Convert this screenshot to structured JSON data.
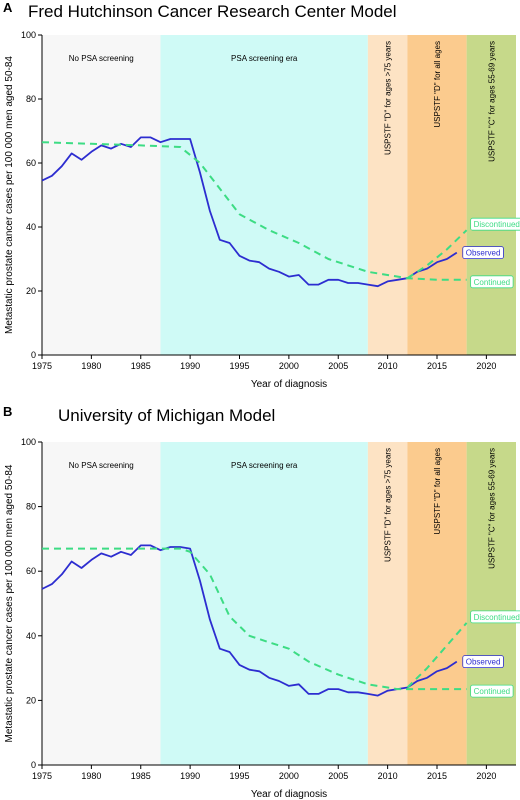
{
  "chart_data": [
    {
      "panel": "A",
      "type": "line",
      "title": "Fred Hutchinson Cancer Research Center Model",
      "xlabel": "Year of diagnosis",
      "ylabel": "Metastatic prostate cancer cases per 100 000 men aged 50-84",
      "xlim": [
        1975,
        2023
      ],
      "ylim": [
        0,
        100
      ],
      "xticks": [
        1975,
        1980,
        1985,
        1990,
        1995,
        2000,
        2005,
        2010,
        2015,
        2020
      ],
      "yticks": [
        0,
        20,
        40,
        60,
        80,
        100
      ],
      "eras": [
        {
          "label": "No PSA screening",
          "from": 1975,
          "to": 1987,
          "color": "#f7f7f7",
          "orientation": "horizontal"
        },
        {
          "label": "PSA screening era",
          "from": 1987,
          "to": 2008,
          "color": "#cffaf6",
          "orientation": "horizontal"
        },
        {
          "label": "USPSTF \"D\" for ages >75 years",
          "from": 2008,
          "to": 2012,
          "color": "#fde3c4",
          "orientation": "vertical"
        },
        {
          "label": "USPSTF \"D\" for all ages",
          "from": 2012,
          "to": 2018,
          "color": "#fbcb8e",
          "orientation": "vertical"
        },
        {
          "label": "USPSTF \"C\" for ages 55-69 years",
          "from": 2018,
          "to": 2023,
          "color": "#c6d98a",
          "orientation": "vertical"
        }
      ],
      "series": [
        {
          "name": "Observed",
          "color": "#2d2dd0",
          "style": "solid",
          "x": [
            1975,
            1976,
            1977,
            1978,
            1979,
            1980,
            1981,
            1982,
            1983,
            1984,
            1985,
            1986,
            1987,
            1988,
            1989,
            1990,
            1991,
            1992,
            1993,
            1994,
            1995,
            1996,
            1997,
            1998,
            1999,
            2000,
            2001,
            2002,
            2003,
            2004,
            2005,
            2006,
            2007,
            2008,
            2009,
            2010,
            2011,
            2012,
            2013,
            2014,
            2015,
            2016,
            2017
          ],
          "y": [
            54.5,
            56,
            59,
            63,
            61,
            63.5,
            65.5,
            64.5,
            66,
            65,
            68,
            68,
            66.5,
            67.5,
            67.5,
            67.5,
            57,
            45,
            36,
            35,
            31,
            29.5,
            29,
            27,
            26,
            24.5,
            25,
            22,
            22,
            23.5,
            23.5,
            22.5,
            22.5,
            22,
            21.5,
            23,
            23.5,
            24,
            26,
            27,
            29,
            30,
            32
          ]
        },
        {
          "name": "Continued",
          "color": "#3ddc84",
          "style": "dashed",
          "x": [
            1975,
            1980,
            1985,
            1989,
            1991,
            1993,
            1995,
            1998,
            2001,
            2004,
            2008,
            2012,
            2015,
            2018
          ],
          "y": [
            66.5,
            66,
            65.5,
            65,
            60,
            52,
            44,
            39,
            35,
            30,
            26,
            24,
            23.5,
            23.5
          ]
        },
        {
          "name": "Discontinued",
          "color": "#3ddc84",
          "style": "dashed",
          "x": [
            2012,
            2014,
            2016,
            2018
          ],
          "y": [
            24,
            28,
            33,
            39
          ]
        }
      ]
    },
    {
      "panel": "B",
      "type": "line",
      "title": "University of Michigan Model",
      "xlabel": "Year of diagnosis",
      "ylabel": "Metastatic prostate cancer cases per 100 000 men aged 50-84",
      "xlim": [
        1975,
        2023
      ],
      "ylim": [
        0,
        100
      ],
      "xticks": [
        1975,
        1980,
        1985,
        1990,
        1995,
        2000,
        2005,
        2010,
        2015,
        2020
      ],
      "yticks": [
        0,
        20,
        40,
        60,
        80,
        100
      ],
      "eras": [
        {
          "label": "No PSA screening",
          "from": 1975,
          "to": 1987,
          "color": "#f7f7f7",
          "orientation": "horizontal"
        },
        {
          "label": "PSA screening era",
          "from": 1987,
          "to": 2008,
          "color": "#cffaf6",
          "orientation": "horizontal"
        },
        {
          "label": "USPSTF \"D\" for ages >75 years",
          "from": 2008,
          "to": 2012,
          "color": "#fde3c4",
          "orientation": "vertical"
        },
        {
          "label": "USPSTF \"D\" for all ages",
          "from": 2012,
          "to": 2018,
          "color": "#fbcb8e",
          "orientation": "vertical"
        },
        {
          "label": "USPSTF \"C\" for ages 55-69 years",
          "from": 2018,
          "to": 2023,
          "color": "#c6d98a",
          "orientation": "vertical"
        }
      ],
      "series": [
        {
          "name": "Observed",
          "color": "#2d2dd0",
          "style": "solid",
          "x": [
            1975,
            1976,
            1977,
            1978,
            1979,
            1980,
            1981,
            1982,
            1983,
            1984,
            1985,
            1986,
            1987,
            1988,
            1989,
            1990,
            1991,
            1992,
            1993,
            1994,
            1995,
            1996,
            1997,
            1998,
            1999,
            2000,
            2001,
            2002,
            2003,
            2004,
            2005,
            2006,
            2007,
            2008,
            2009,
            2010,
            2011,
            2012,
            2013,
            2014,
            2015,
            2016,
            2017
          ],
          "y": [
            54.5,
            56,
            59,
            63,
            61,
            63.5,
            65.5,
            64.5,
            66,
            65,
            68,
            68,
            66.5,
            67.5,
            67.5,
            67,
            57,
            45,
            36,
            35,
            31,
            29.5,
            29,
            27,
            26,
            24.5,
            25,
            22,
            22,
            23.5,
            23.5,
            22.5,
            22.5,
            22,
            21.5,
            23,
            23.5,
            24,
            26,
            27,
            29,
            30,
            32
          ]
        },
        {
          "name": "Continued",
          "color": "#3ddc84",
          "style": "dashed",
          "x": [
            1975,
            1980,
            1985,
            1989,
            1990,
            1992,
            1994,
            1996,
            1998,
            2000,
            2002,
            2005,
            2008,
            2011,
            2015,
            2018
          ],
          "y": [
            67,
            67,
            67,
            67,
            66,
            59,
            46,
            40,
            38,
            36,
            32,
            28,
            25,
            23.5,
            23.5,
            23.5
          ]
        },
        {
          "name": "Discontinued",
          "color": "#3ddc84",
          "style": "dashed",
          "x": [
            2012,
            2014,
            2016,
            2018
          ],
          "y": [
            24,
            30,
            37,
            44
          ]
        }
      ]
    }
  ]
}
